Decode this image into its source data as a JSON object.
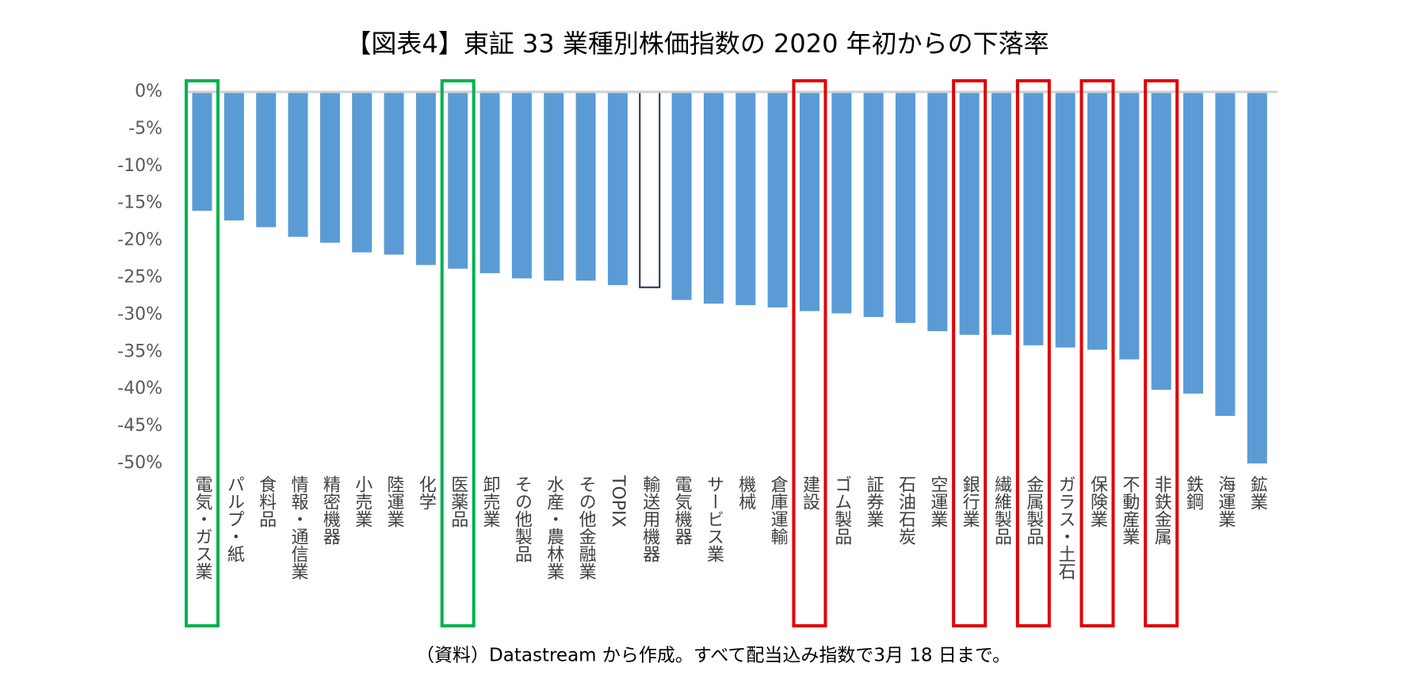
{
  "chart_data": {
    "type": "bar",
    "title": "【図表4】東証 33 業種別株価指数の 2020 年初からの下落率",
    "note": "（資料）Datastream から作成。すべて配当込み指数で3月 18 日まで。",
    "categories": [
      "電気・ガス業",
      "パルプ・紙",
      "食料品",
      "情報・通信業",
      "精密機器",
      "小売業",
      "陸運業",
      "化学",
      "医薬品",
      "卸売業",
      "その他製品",
      "水産・農林業",
      "その他金融業",
      "TOPIX",
      "輸送用機器",
      "電気機器",
      "サービス業",
      "機械",
      "倉庫運輸",
      "建設",
      "ゴム製品",
      "証券業",
      "石油石炭",
      "空運業",
      "銀行業",
      "繊維製品",
      "金属製品",
      "ガラス・土石",
      "保険業",
      "不動産業",
      "非鉄金属",
      "鉄鋼",
      "海運業",
      "鉱業"
    ],
    "values": [
      -16,
      -17.3,
      -18.2,
      -19.5,
      -20.3,
      -21.6,
      -21.9,
      -23.3,
      -23.8,
      -24.4,
      -25.1,
      -25.4,
      -25.4,
      -26,
      -26.3,
      -28,
      -28.5,
      -28.7,
      -29,
      -29.5,
      -29.8,
      -30.3,
      -31.1,
      -32.2,
      -32.7,
      -32.7,
      -34.1,
      -34.4,
      -34.7,
      -36,
      -40.1,
      -40.6,
      -43.6,
      -50
    ],
    "color": "#5b9bd5",
    "colors": [
      null,
      null,
      null,
      null,
      null,
      null,
      null,
      null,
      null,
      null,
      null,
      null,
      null,
      null,
      "#ffffff",
      null,
      null,
      null,
      null,
      null,
      null,
      null,
      null,
      null,
      null,
      null,
      null,
      null,
      null,
      null,
      null,
      null,
      null,
      null
    ],
    "edge_colors": [
      null,
      null,
      null,
      null,
      null,
      null,
      null,
      null,
      null,
      null,
      null,
      null,
      null,
      null,
      "#1f2d4e",
      null,
      null,
      null,
      null,
      null,
      null,
      null,
      null,
      null,
      null,
      null,
      null,
      null,
      null,
      null,
      null,
      null,
      null,
      null
    ],
    "highlight_colors": [
      "#00b050",
      null,
      null,
      null,
      null,
      null,
      null,
      null,
      "#00b050",
      null,
      null,
      null,
      null,
      null,
      null,
      null,
      null,
      null,
      null,
      "#e00000",
      null,
      null,
      null,
      null,
      "#e00000",
      null,
      "#e00000",
      null,
      "#e00000",
      null,
      "#e00000",
      null,
      null,
      null
    ],
    "ylim": [
      -50,
      0
    ],
    "yticks": [
      {
        "value": 0,
        "label": "0%"
      },
      {
        "value": -5,
        "label": "-5%"
      },
      {
        "value": -10,
        "label": "-10%"
      },
      {
        "value": -15,
        "label": "-15%"
      },
      {
        "value": -20,
        "label": "-20%"
      },
      {
        "value": -25,
        "label": "-25%"
      },
      {
        "value": -30,
        "label": "-30%"
      },
      {
        "value": -35,
        "label": "-35%"
      },
      {
        "value": -40,
        "label": "-40%"
      },
      {
        "value": -45,
        "label": "-45%"
      },
      {
        "value": -50,
        "label": "-50%"
      }
    ],
    "grid": false
  }
}
